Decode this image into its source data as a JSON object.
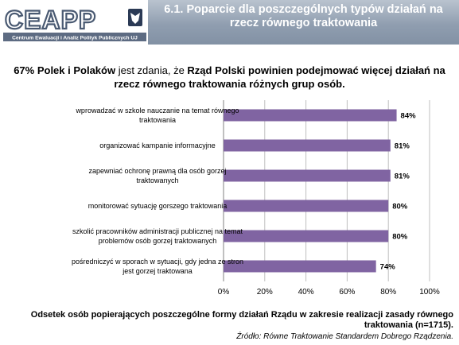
{
  "logo": {
    "text": "CEAPP",
    "subtitle": "Centrum Ewaluacji i Analiz Polityk Publicznych UJ"
  },
  "header": {
    "title_line1": "6.1. Poparcie dla poszczególnych typów działań na",
    "title_line2": "rzecz równego traktowania"
  },
  "lead": {
    "part1": "67% Polek i Polaków",
    "part2": " jest zdania, że ",
    "part3": "Rząd Polski powinien podejmować więcej działań na",
    "line2": "rzecz równego traktowania różnych grup osób."
  },
  "chart_data": {
    "type": "bar",
    "orientation": "horizontal",
    "categories": [
      [
        "wprowadzać w szkole nauczanie na temat równego",
        "traktowania"
      ],
      [
        "organizować kampanie informacyjne"
      ],
      [
        "zapewniać ochronę prawną dla osób gorzej",
        "traktowanych"
      ],
      [
        "monitorować sytuację gorszego traktowania"
      ],
      [
        "szkolić pracowników administracji publicznej na temat",
        "problemów osób gorzej traktowanych"
      ],
      [
        "pośredniczyć w sporach w sytuacji, gdy jedna ze stron",
        "jest gorzej traktowana"
      ]
    ],
    "values": [
      84,
      81,
      81,
      80,
      80,
      74
    ],
    "value_labels": [
      "84%",
      "81%",
      "81%",
      "80%",
      "80%",
      "74%"
    ],
    "xlim": [
      0,
      100
    ],
    "ticks": [
      0,
      20,
      40,
      60,
      80,
      100
    ],
    "tick_labels": [
      "0%",
      "20%",
      "40%",
      "60%",
      "80%",
      "100%"
    ],
    "grid": true,
    "bar_color": "#8064a2"
  },
  "footer": {
    "line1": "Odsetek osób popierających  poszczególne formy działań Rządu w zakresie  realizacji zasady równego",
    "line2": "traktowania (n=1715).",
    "source": "Źródło: Równe Traktowanie Standardem Dobrego Rządzenia."
  }
}
